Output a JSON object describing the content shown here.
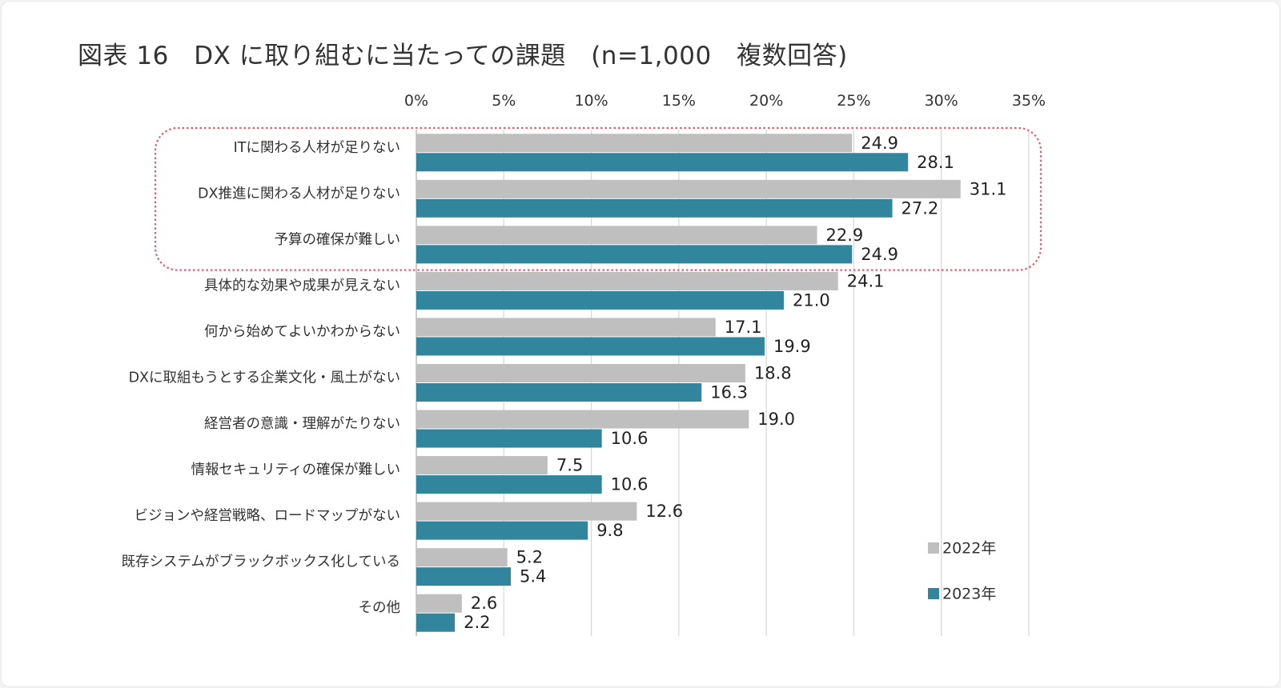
{
  "title": "図表 16　DX に取り組むに当たっての課題　(n=1,000　複数回答)",
  "colors": {
    "series_2022": "#bfbfbf",
    "series_2023": "#31859c",
    "highlight_border": "#e06070",
    "grid": "#d9d9d9"
  },
  "chart_data": {
    "type": "bar",
    "orientation": "horizontal",
    "title": "図表 16　DX に取り組むに当たっての課題　(n=1,000　複数回答)",
    "xlim": [
      0,
      35
    ],
    "x_ticks": [
      0,
      5,
      10,
      15,
      20,
      25,
      30,
      35
    ],
    "x_tick_labels": [
      "0%",
      "5%",
      "10%",
      "15%",
      "20%",
      "25%",
      "30%",
      "35%"
    ],
    "x_axis_position": "top",
    "grid": true,
    "legend_position": "bottom-right",
    "categories": [
      "ITに関わる人材が足りない",
      "DX推進に関わる人材が足りない",
      "予算の確保が難しい",
      "具体的な効果や成果が見えない",
      "何から始めてよいかわからない",
      "DXに取組もうとする企業文化・風土がない",
      "経営者の意識・理解がたりない",
      "情報セキュリティの確保が難しい",
      "ビジョンや経営戦略、ロードマップがない",
      "既存システムがブラックボックス化している",
      "その他"
    ],
    "series": [
      {
        "name": "2022年",
        "values": [
          24.9,
          31.1,
          22.9,
          24.1,
          17.1,
          18.8,
          19.0,
          7.5,
          12.6,
          5.2,
          2.6
        ]
      },
      {
        "name": "2023年",
        "values": [
          28.1,
          27.2,
          24.9,
          21.0,
          19.9,
          16.3,
          10.6,
          10.6,
          9.8,
          5.4,
          2.2
        ]
      }
    ],
    "value_labels": [
      [
        "24.9",
        "31.1",
        "22.9",
        "24.1",
        "17.1",
        "18.8",
        "19.0",
        "7.5",
        "12.6",
        "5.2",
        "2.6"
      ],
      [
        "28.1",
        "27.2",
        "24.9",
        "21.0",
        "19.9",
        "16.3",
        "10.6",
        "10.6",
        "9.8",
        "5.4",
        "2.2"
      ]
    ],
    "highlighted_categories": [
      0,
      1,
      2
    ]
  }
}
